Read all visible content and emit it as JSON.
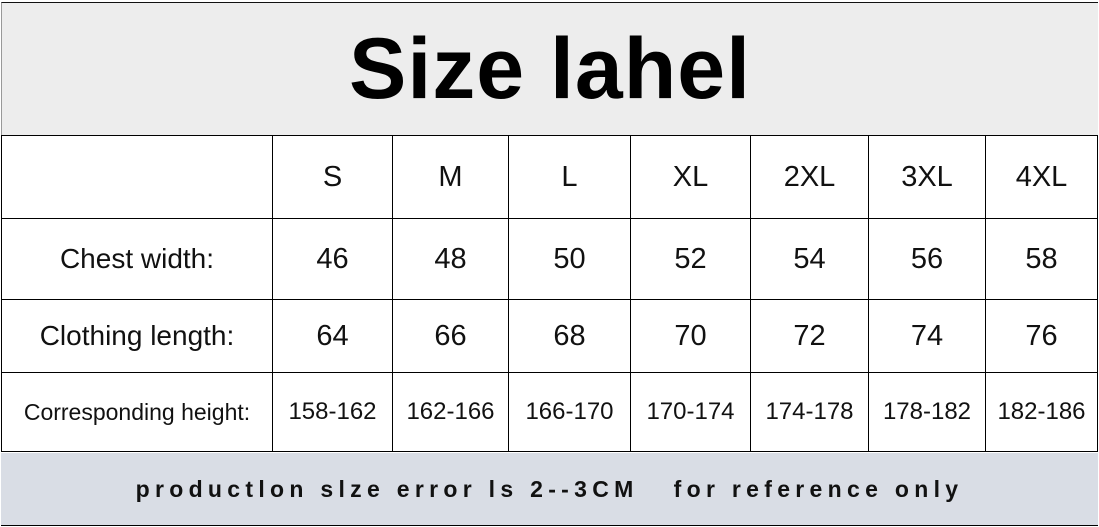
{
  "title": "Size lahel",
  "sizes": [
    "S",
    "M",
    "L",
    "XL",
    "2XL",
    "3XL",
    "4XL"
  ],
  "rows": [
    {
      "label": "Chest width:",
      "values": [
        "46",
        "48",
        "50",
        "52",
        "54",
        "56",
        "58"
      ]
    },
    {
      "label": "Clothing length:",
      "values": [
        "64",
        "66",
        "68",
        "70",
        "72",
        "74",
        "76"
      ]
    },
    {
      "label": "Corresponding height:",
      "values": [
        "158-162",
        "162-166",
        "166-170",
        "170-174",
        "174-178",
        "178-182",
        "182-186"
      ]
    }
  ],
  "footer": "productlon slze error ls 2--3CM   for reference only",
  "colors": {
    "title_bg": "#ededed",
    "footer_bg": "#d9dde5"
  }
}
